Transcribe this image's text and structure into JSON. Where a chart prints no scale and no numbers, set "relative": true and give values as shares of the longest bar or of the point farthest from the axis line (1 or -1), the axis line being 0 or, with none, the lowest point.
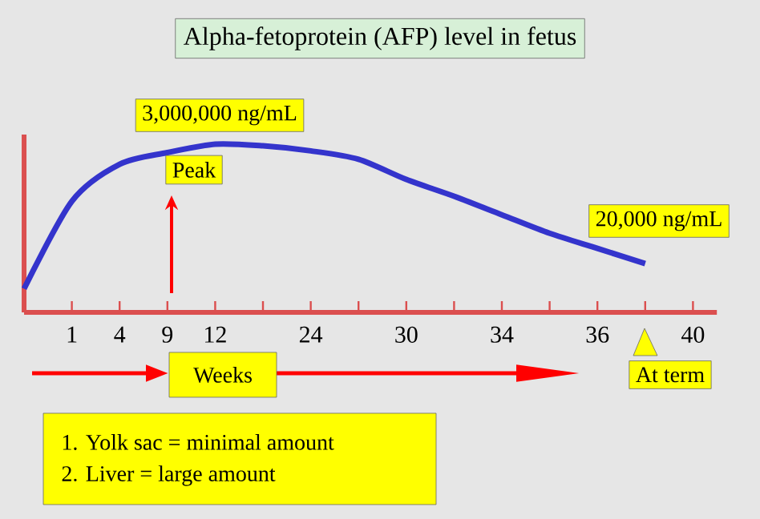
{
  "chart_data": {
    "type": "line",
    "relative": true,
    "title": "Alpha-fetoprotein (AFP) level in fetus",
    "xlabel": "Weeks",
    "categories": [
      null,
      "1",
      "4",
      "9",
      "12",
      null,
      "24",
      null,
      "30",
      null,
      "34",
      null,
      "36",
      null,
      "40"
    ],
    "series": [
      {
        "color": "#3434cc",
        "values": [
          0.14,
          0.66,
          0.88,
          0.95,
          1.0,
          0.99,
          0.96,
          0.91,
          0.79,
          0.69,
          0.58,
          0.47,
          0.38,
          0.29,
          null
        ]
      }
    ],
    "annotations": [
      "3,000,000 ng/mL",
      "Peak",
      "20,000 ng/mL",
      "At term",
      "1. Yolk sac = minimal amount",
      "2. Liver = large amount"
    ]
  }
}
